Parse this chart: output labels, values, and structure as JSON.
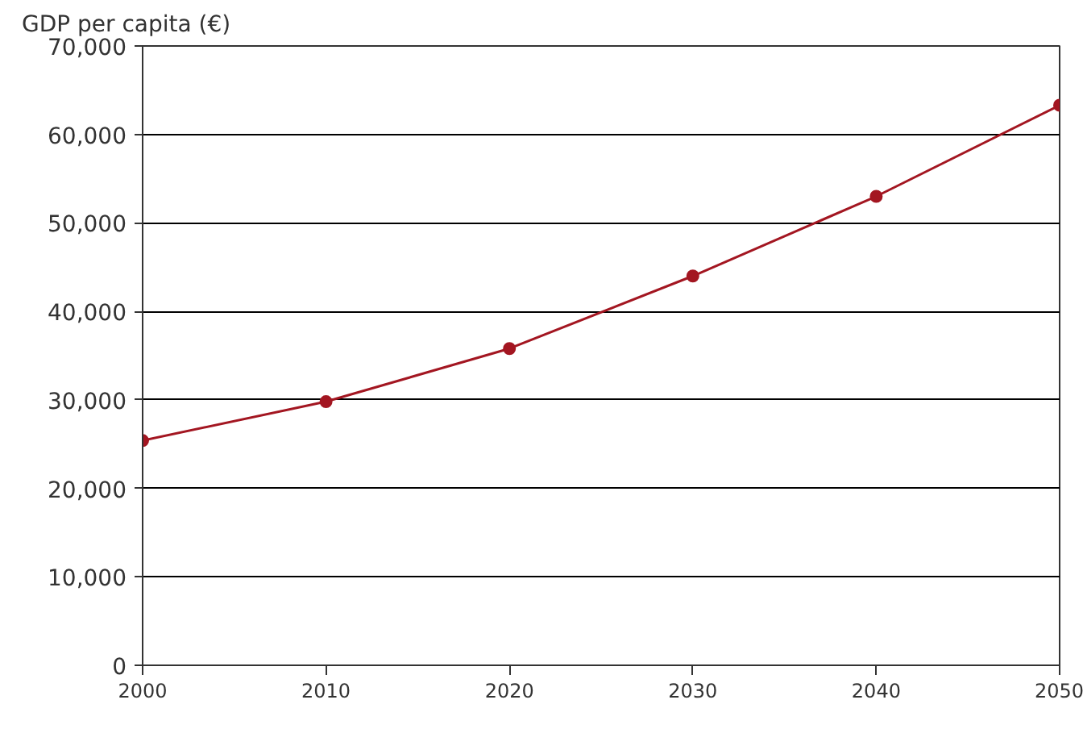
{
  "chart_data": {
    "type": "line",
    "ylabel": "GDP per capita (€)",
    "x": [
      2000,
      2010,
      2020,
      2030,
      2040,
      2050
    ],
    "series": [
      {
        "color": "#a31621",
        "values": [
          25400,
          29800,
          35800,
          44000,
          53000,
          63300
        ]
      }
    ],
    "xlim": [
      2000,
      2050
    ],
    "xticks": [
      2000,
      2010,
      2020,
      2030,
      2040,
      2050
    ],
    "ylim": [
      0,
      70000
    ],
    "yticks": [
      0,
      {
        "value": 10000,
        "label": "10,000"
      },
      {
        "value": 20000,
        "label": "20,000"
      },
      {
        "value": 30000,
        "label": "30,000"
      },
      {
        "value": 40000,
        "label": "40,000"
      },
      {
        "value": 50000,
        "label": "50,000"
      },
      {
        "value": 60000,
        "label": "60,000"
      },
      {
        "value": 70000,
        "label": "70,000"
      }
    ],
    "grid": "y",
    "marker": "circle"
  }
}
